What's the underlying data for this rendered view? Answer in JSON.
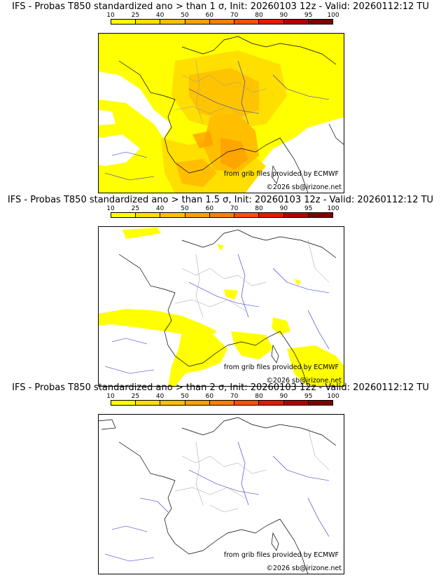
{
  "panels": [
    {
      "title": "IFS - Probas T850  standardized ano > than 1 σ, Init: 20260103 12z - Valid: 20260112:12 TU",
      "level": "1"
    },
    {
      "title": "IFS - Probas T850  standardized ano > than 1.5 σ, Init: 20260103 12z - Valid: 20260112:12 TU",
      "level": "1.5"
    },
    {
      "title": "IFS - Probas T850  standardized ano > than 2 σ, Init: 20260103 12z - Valid: 20260112:12 TU",
      "level": "2"
    }
  ],
  "colorbar": {
    "ticks": [
      "10",
      "25",
      "40",
      "50",
      "60",
      "70",
      "80",
      "90",
      "95",
      "100"
    ],
    "colors": [
      "#ffff00",
      "#ffdf00",
      "#ffbf00",
      "#ff9f00",
      "#ff7f00",
      "#ff4f00",
      "#e61a00",
      "#b40000",
      "#800000"
    ]
  },
  "credits": {
    "source": "from grib files provided by ECMWF",
    "copyright": "©2026 sb@irizone.net"
  }
}
